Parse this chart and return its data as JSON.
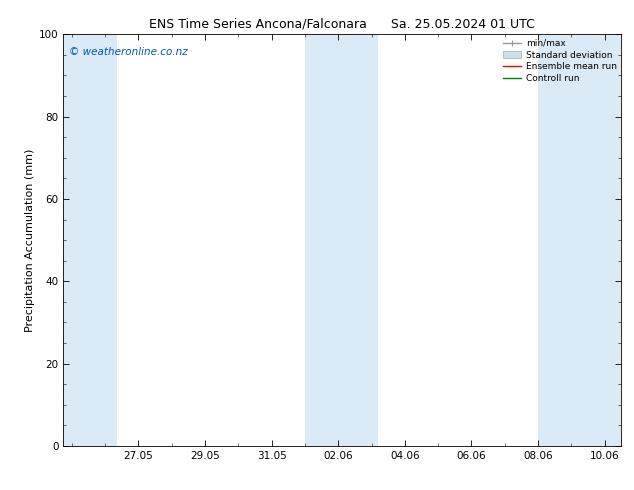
{
  "title": "ENS Time Series Ancona/Falconara",
  "title2": "Sa. 25.05.2024 01 UTC",
  "ylabel": "Precipitation Accumulation (mm)",
  "watermark": "© weatheronline.co.nz",
  "ylim": [
    0,
    100
  ],
  "background_color": "#ffffff",
  "plot_bg_color": "#ffffff",
  "band_color": "#daeaf6",
  "x_ticks_labels": [
    "27.05",
    "29.05",
    "31.05",
    "02.06",
    "04.06",
    "06.06",
    "08.06",
    "10.06"
  ],
  "legend_labels": [
    "min/max",
    "Standard deviation",
    "Ensemble mean run",
    "Controll run"
  ],
  "legend_colors": [
    "#aaaaaa",
    "#c8dff0",
    "red",
    "green"
  ],
  "title_fontsize": 9,
  "axis_fontsize": 8,
  "tick_fontsize": 7.5,
  "watermark_fontsize": 7.5
}
